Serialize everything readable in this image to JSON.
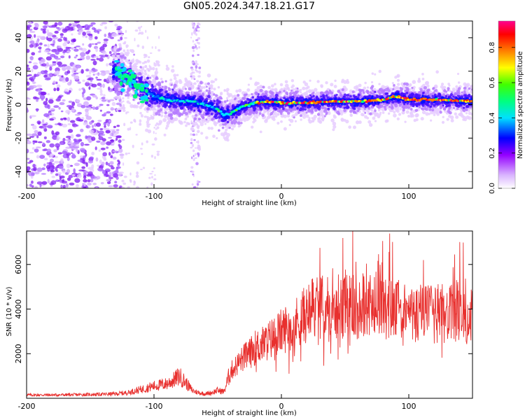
{
  "title": "GN05.2024.347.18.21.G17",
  "chart_data": [
    {
      "type": "heatmap",
      "xlabel": "Height of straight line (km)",
      "ylabel": "Frequency (Hz)",
      "xlim": [
        -200,
        150
      ],
      "ylim": [
        -50,
        50
      ],
      "x_ticks": [
        -200,
        -100,
        0,
        100
      ],
      "y_ticks": [
        -40,
        -20,
        0,
        20,
        40
      ],
      "colorbar": {
        "label": "Normalized spectral amplitude",
        "range": [
          0,
          0.95
        ],
        "ticks": [
          "0.0",
          "0.2",
          "0.4",
          "0.6",
          "0.8"
        ],
        "colors": [
          "#ffffff",
          "#d9b3ff",
          "#9400ff",
          "#0000ff",
          "#00e0ff",
          "#00ff80",
          "#40ff00",
          "#ffff00",
          "#ff8000",
          "#ff0000",
          "#ff0090"
        ]
      },
      "ridge": {
        "name": "",
        "x": [
          -130,
          -120,
          -110,
          -100,
          -90,
          -80,
          -70,
          -60,
          -50,
          -45,
          -40,
          -30,
          -20,
          -10,
          0,
          20,
          40,
          60,
          80,
          90,
          100,
          120,
          150
        ],
        "y": [
          20,
          16,
          10,
          5,
          3,
          2,
          2,
          0,
          -3,
          -6,
          -5,
          -1,
          1,
          2,
          1,
          1,
          2,
          2,
          3,
          5,
          3,
          3,
          2
        ]
      },
      "noise_region_x": [
        -200,
        -125
      ]
    },
    {
      "type": "line",
      "xlabel": "Height of straight line (km)",
      "ylabel": "SNR (10 * v/v)",
      "xlim": [
        -200,
        150
      ],
      "ylim": [
        0,
        7500
      ],
      "x_ticks": [
        -200,
        -100,
        0,
        100
      ],
      "y_ticks": [
        2000,
        4000,
        6000
      ],
      "series": [
        {
          "name": "",
          "color": "#e8302e",
          "x": [
            -200,
            -180,
            -160,
            -140,
            -130,
            -120,
            -110,
            -100,
            -90,
            -85,
            -80,
            -75,
            -70,
            -65,
            -60,
            -55,
            -50,
            -45,
            -40,
            -35,
            -30,
            -25,
            -20,
            -15,
            -10,
            -5,
            0,
            5,
            10,
            15,
            20,
            25,
            30,
            35,
            40,
            45,
            50,
            55,
            60,
            65,
            70,
            75,
            80,
            85,
            90,
            95,
            100,
            105,
            110,
            115,
            120,
            125,
            130,
            135,
            140,
            145,
            150
          ],
          "y": [
            150,
            150,
            160,
            180,
            200,
            260,
            400,
            550,
            650,
            800,
            1000,
            700,
            350,
            250,
            200,
            250,
            350,
            300,
            1200,
            1500,
            1800,
            2000,
            2300,
            2400,
            2600,
            2800,
            3000,
            3200,
            3300,
            3600,
            3800,
            4000,
            4100,
            4200,
            3900,
            4000,
            4100,
            4200,
            4000,
            4300,
            4100,
            4200,
            4100,
            4000,
            3900,
            4000,
            3800,
            3700,
            3900,
            3800,
            3700,
            3900,
            3700,
            3800,
            3900,
            3700,
            3800
          ]
        }
      ]
    }
  ]
}
